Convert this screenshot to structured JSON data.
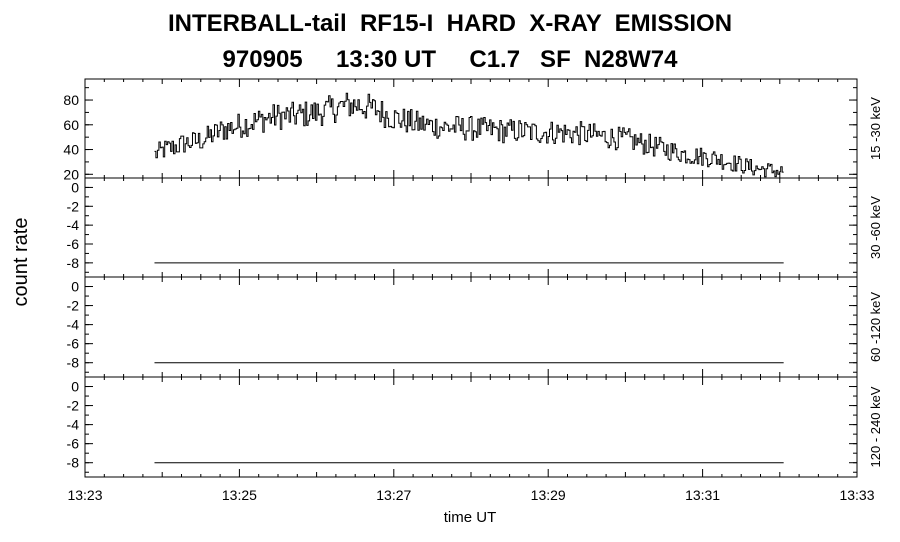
{
  "title_line1": "INTERBALL-tail  RF15-I  HARD  X-RAY  EMISSION",
  "title_line2": "970905     13:30 UT     C1.7   SF  N28W74",
  "ylabel": "count rate",
  "xlabel": "time UT",
  "colors": {
    "trace": "#000000",
    "frame": "#000000",
    "background": "#ffffff"
  },
  "chart_data": {
    "type": "line",
    "x_unit": "minutes UT",
    "xlim": [
      "13:23",
      "13:33"
    ],
    "x_ticks": [
      "13:23",
      "13:25",
      "13:27",
      "13:29",
      "13:31",
      "13:33"
    ],
    "grid": false,
    "panels": [
      {
        "label": "15 -30 keV",
        "ylim": [
          17,
          97
        ],
        "y_ticks": [
          20,
          40,
          60,
          80
        ],
        "y_tick_labels": [
          "20",
          "40",
          "60",
          "80"
        ],
        "line_style": "steps",
        "x_start": "13:23.9",
        "x_end": "13:32.05",
        "values": [
          36,
          40,
          42,
          45,
          46,
          48,
          52,
          56,
          58,
          60,
          62,
          64,
          66,
          67,
          67,
          68,
          69,
          70,
          72,
          74,
          76,
          76,
          74,
          72,
          68,
          65,
          63,
          61,
          60,
          59,
          58,
          58,
          57,
          57,
          56,
          56,
          55,
          55,
          55,
          54,
          54,
          54,
          54,
          53,
          53,
          52,
          51,
          50,
          49,
          48,
          46,
          44,
          42,
          40,
          38,
          36,
          35,
          34,
          33,
          31,
          29,
          27,
          25,
          24,
          23,
          22
        ]
      },
      {
        "label": "30 -60 keV",
        "ylim": [
          -9.5,
          1
        ],
        "y_ticks": [
          -8,
          -6,
          -4,
          -2,
          0
        ],
        "y_tick_labels": [
          "-8",
          "-6",
          "-4",
          "-2",
          "0"
        ],
        "line_style": "flat",
        "x_start": "13:23.9",
        "x_end": "13:32.05",
        "values": [
          -8,
          -8
        ]
      },
      {
        "label": "60 -120 keV",
        "ylim": [
          -9.5,
          1
        ],
        "y_ticks": [
          -8,
          -6,
          -4,
          -2,
          0
        ],
        "y_tick_labels": [
          "-8",
          "-6",
          "-4",
          "-2",
          "0"
        ],
        "line_style": "flat",
        "x_start": "13:23.9",
        "x_end": "13:32.05",
        "values": [
          -8,
          -8
        ]
      },
      {
        "label": "120 - 240 keV",
        "ylim": [
          -9.5,
          1
        ],
        "y_ticks": [
          -8,
          -6,
          -4,
          -2,
          0
        ],
        "y_tick_labels": [
          "-8",
          "-6",
          "-4",
          "-2",
          "0"
        ],
        "line_style": "flat",
        "x_start": "13:23.9",
        "x_end": "13:32.05",
        "values": [
          -8,
          -8
        ]
      }
    ]
  }
}
